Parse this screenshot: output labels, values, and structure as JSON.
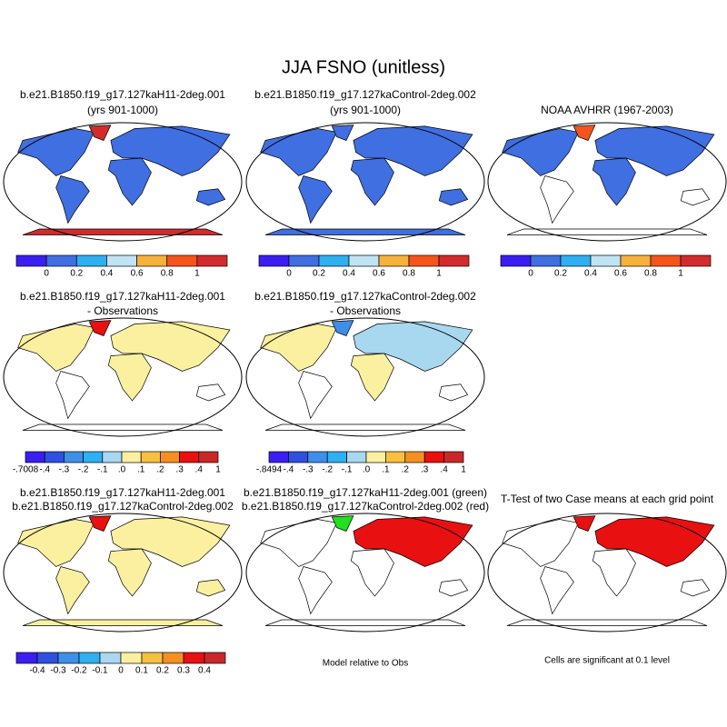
{
  "title": "JJA FSNO (unitless)",
  "panels": [
    {
      "title": [
        "b.e21.B1850.f19_g17.127kaH11-2deg.001",
        "(yrs 901-1000)"
      ],
      "colorbar": {
        "colors": [
          "#3b1ef0",
          "#3f6fe0",
          "#2fb0f0",
          "#c0e4f5",
          "#f7b23b",
          "#f5541e",
          "#d32b2b"
        ],
        "labels": [
          "0",
          "0.2",
          "0.4",
          "0.6",
          "0.8",
          "1"
        ]
      }
    },
    {
      "title": [
        "b.e21.B1850.f19_g17.127kaControl-2deg.002",
        "(yrs 901-1000)"
      ],
      "colorbar": {
        "colors": [
          "#3b1ef0",
          "#3f6fe0",
          "#2fb0f0",
          "#c0e4f5",
          "#f7b23b",
          "#f5541e",
          "#d32b2b"
        ],
        "labels": [
          "0",
          "0.2",
          "0.4",
          "0.6",
          "0.8",
          "1"
        ]
      }
    },
    {
      "title": [
        "NOAA AVHRR (1967-2003)"
      ],
      "colorbar": {
        "colors": [
          "#3b1ef0",
          "#3f6fe0",
          "#2fb0f0",
          "#c0e4f5",
          "#f7b23b",
          "#f5541e",
          "#d32b2b"
        ],
        "labels": [
          "0",
          "0.2",
          "0.4",
          "0.6",
          "0.8",
          "1"
        ]
      }
    },
    {
      "title": [
        "b.e21.B1850.f19_g17.127kaH11-2deg.001",
        "- Observations"
      ],
      "colorbar": {
        "colors": [
          "#3b1ef0",
          "#3050e0",
          "#3f8fe8",
          "#2fb0f0",
          "#a8d8f0",
          "#fbf0a0",
          "#f7c040",
          "#f59020",
          "#e81010",
          "#c82828"
        ],
        "labels": [
          "-.7008",
          "-.4",
          "-.3",
          "-.2",
          "-.1",
          ".0",
          ".1",
          ".2",
          ".3",
          ".4",
          "1"
        ]
      }
    },
    {
      "title": [
        "b.e21.B1850.f19_g17.127kaControl-2deg.002",
        "- Observations"
      ],
      "colorbar": {
        "colors": [
          "#3b1ef0",
          "#3050e0",
          "#3f8fe8",
          "#2fb0f0",
          "#a8d8f0",
          "#fbf0a0",
          "#f7c040",
          "#f59020",
          "#e81010",
          "#c82828"
        ],
        "labels": [
          "-.8494",
          "-.4",
          "-.3",
          "-.2",
          "-.1",
          ".0",
          ".1",
          ".2",
          ".3",
          ".4",
          "1"
        ]
      }
    },
    {
      "title": [
        "b.e21.B1850.f19_g17.127kaH11-2deg.001",
        "b.e21.B1850.f19_g17.127kaControl-2deg.002"
      ],
      "colorbar": {
        "colors": [
          "#3b1ef0",
          "#3050e0",
          "#3f8fe8",
          "#2fb0f0",
          "#a8d8f0",
          "#fbf0a0",
          "#f7c040",
          "#f59020",
          "#e81010",
          "#c82828"
        ],
        "labels": [
          "-0.4",
          "-0.3",
          "-0.2",
          "-0.1",
          "0",
          "0.1",
          "0.2",
          "0.3",
          "0.4"
        ]
      }
    },
    {
      "title": [
        "b.e21.B1850.f19_g17.127kaH11-2deg.001 (green)",
        "b.e21.B1850.f19_g17.127kaControl-2deg.002 (red)"
      ],
      "note": "Model relative to Obs"
    },
    {
      "title": [
        "T-Test of two Case means at each grid point"
      ],
      "note": "Cells are significant at 0.1 level"
    }
  ]
}
